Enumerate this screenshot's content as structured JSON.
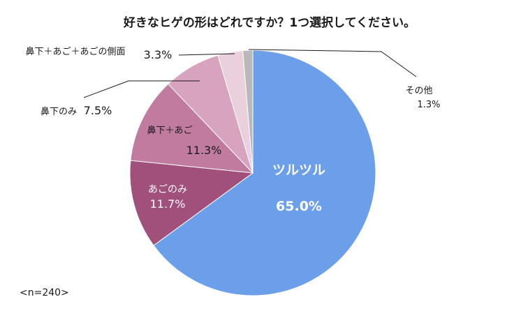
{
  "chart_data": {
    "type": "pie",
    "title": "好きなヒゲの形はどれですか？1つ選択してください。",
    "note": "<n=240>",
    "slices": [
      {
        "name": "ツルツル",
        "value": 65.0,
        "label": "65.0%",
        "color": "#6b9fea"
      },
      {
        "name": "あごのみ",
        "value": 11.7,
        "label": "11.7%",
        "color": "#a14f7b"
      },
      {
        "name": "鼻下＋あご",
        "value": 11.3,
        "label": "11.3%",
        "color": "#c17b9f"
      },
      {
        "name": "鼻下のみ",
        "value": 7.5,
        "label": "7.5%",
        "color": "#d7a3bf"
      },
      {
        "name": "鼻下＋あご＋あごの側面",
        "value": 3.3,
        "label": "3.3%",
        "color": "#ead0dc"
      },
      {
        "name": "その他",
        "value": 1.3,
        "label": "1.3%",
        "color": "#b9b9b9"
      }
    ]
  }
}
